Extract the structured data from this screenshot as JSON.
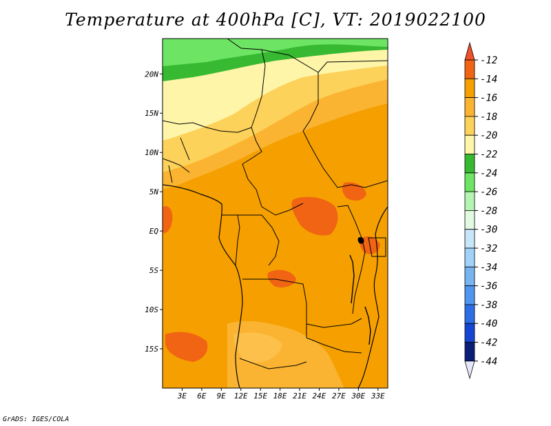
{
  "map": {
    "title": "Temperature at 400hPa [C], VT: 2019022100",
    "credit": "GrADS: IGES/COLA",
    "lat_labels": [
      {
        "text": "20N",
        "lat": 20
      },
      {
        "text": "15N",
        "lat": 15
      },
      {
        "text": "10N",
        "lat": 10
      },
      {
        "text": "5N",
        "lat": 5
      },
      {
        "text": "EQ",
        "lat": 0
      },
      {
        "text": "5S",
        "lat": -5
      },
      {
        "text": "10S",
        "lat": -10
      },
      {
        "text": "15S",
        "lat": -15
      }
    ],
    "lon_labels": [
      {
        "text": "3E",
        "lon": 3
      },
      {
        "text": "6E",
        "lon": 6
      },
      {
        "text": "9E",
        "lon": 9
      },
      {
        "text": "12E",
        "lon": 12
      },
      {
        "text": "15E",
        "lon": 15
      },
      {
        "text": "18E",
        "lon": 18
      },
      {
        "text": "21E",
        "lon": 21
      },
      {
        "text": "24E",
        "lon": 24
      },
      {
        "text": "27E",
        "lon": 27
      },
      {
        "text": "30E",
        "lon": 30
      },
      {
        "text": "33E",
        "lon": 33
      }
    ],
    "extent": {
      "lon_min": 0,
      "lon_max": 34.5,
      "lat_min": -20,
      "lat_max": 24.5
    }
  },
  "colorbar": {
    "labels": [
      "-12",
      "-14",
      "-16",
      "-18",
      "-20",
      "-22",
      "-24",
      "-26",
      "-28",
      "-30",
      "-32",
      "-34",
      "-36",
      "-38",
      "-40",
      "-42",
      "-44"
    ],
    "top_arrow_color": "#f0502a",
    "bottom_arrow_color": "#e6e6fa",
    "colors": [
      "#f06414",
      "#f5a000",
      "#fab432",
      "#fdd25a",
      "#fef5a8",
      "#37b932",
      "#6ee464",
      "#b4f5b4",
      "#e1fae1",
      "#c8e6fa",
      "#a0d2fa",
      "#78b4f0",
      "#5096f0",
      "#2d6ee6",
      "#1446d2",
      "#0a1e78"
    ]
  }
}
